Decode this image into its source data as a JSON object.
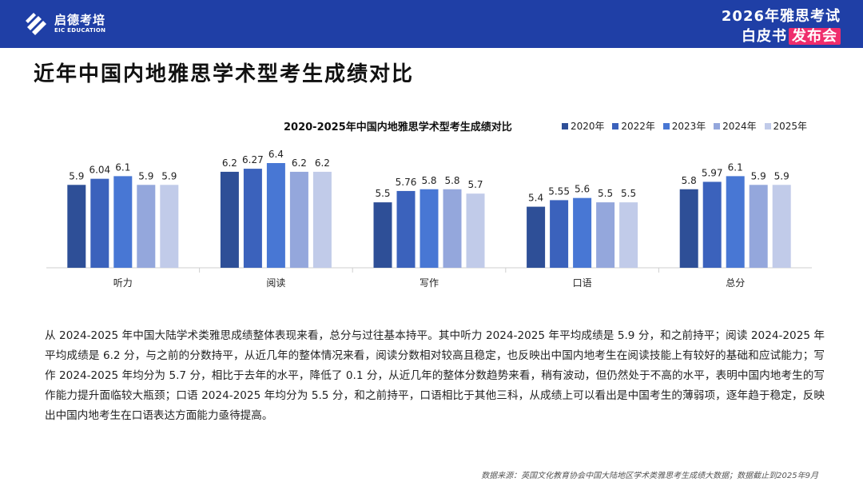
{
  "header": {
    "brand_name": "启德考培",
    "brand_sub": "EIC EDUCATION",
    "event_line1": "2026年雅思考试",
    "event_line2_main": "白皮书",
    "event_line2_badge": "发布会",
    "bg_color": "#1f3fa6",
    "badge_color": "#ef2d6c"
  },
  "page": {
    "title": "近年中国内地雅思学术型考生成绩对比"
  },
  "chart_data": {
    "type": "bar",
    "title": "2020-2025年中国内地雅思学术型考生成绩对比",
    "categories": [
      "听力",
      "阅读",
      "写作",
      "口语",
      "总分"
    ],
    "series": [
      {
        "name": "2020年",
        "color": "#2e4f97",
        "values": [
          5.9,
          6.2,
          5.5,
          5.4,
          5.8
        ]
      },
      {
        "name": "2022年",
        "color": "#3b62bc",
        "values": [
          6.04,
          6.27,
          5.76,
          5.55,
          5.97
        ]
      },
      {
        "name": "2023年",
        "color": "#4877d4",
        "values": [
          6.1,
          6.4,
          5.8,
          5.6,
          6.1
        ]
      },
      {
        "name": "2024年",
        "color": "#94a7dc",
        "values": [
          5.9,
          6.2,
          5.8,
          5.5,
          5.9
        ]
      },
      {
        "name": "2025年",
        "color": "#c1cbe9",
        "values": [
          5.9,
          6.2,
          5.7,
          5.5,
          5.9
        ]
      }
    ],
    "data_labels": [
      [
        "5.9",
        "6.04",
        "6.1",
        "5.9",
        "5.9"
      ],
      [
        "6.2",
        "6.27",
        "6.4",
        "6.2",
        "6.2"
      ],
      [
        "5.5",
        "5.76",
        "5.8",
        "5.8",
        "5.7"
      ],
      [
        "5.4",
        "5.55",
        "5.6",
        "5.5",
        "5.5"
      ],
      [
        "5.8",
        "5.97",
        "6.1",
        "5.9",
        "5.9"
      ]
    ],
    "xlabel": "",
    "ylabel": "",
    "ylim": [
      4.0,
      6.6
    ],
    "grid": false,
    "legend_position": "top-right"
  },
  "body": {
    "paragraph": "从 2024-2025 年中国大陆学术类雅思成绩整体表现来看，总分与过往基本持平。其中听力 2024-2025 年平均成绩是 5.9 分，和之前持平；阅读 2024-2025 年平均成绩是 6.2 分，与之前的分数持平，从近几年的整体情况来看，阅读分数相对较高且稳定，也反映出中国内地考生在阅读技能上有较好的基础和应试能力；写作 2024-2025 年均分为 5.7 分，相比于去年的水平，降低了 0.1 分，从近几年的整体分数趋势来看，稍有波动，但仍然处于不高的水平，表明中国内地考生的写作能力提升面临较大瓶颈；口语 2024-2025 年均分为 5.5 分，和之前持平，口语相比于其他三科，从成绩上可以看出是中国考生的薄弱项，逐年趋于稳定，反映出中国内地考生在口语表达方面能力亟待提高。",
    "footnote": "数据来源：英国文化教育协会中国大陆地区学术类雅思考生成绩大数据；数据截止到2025年9月"
  }
}
